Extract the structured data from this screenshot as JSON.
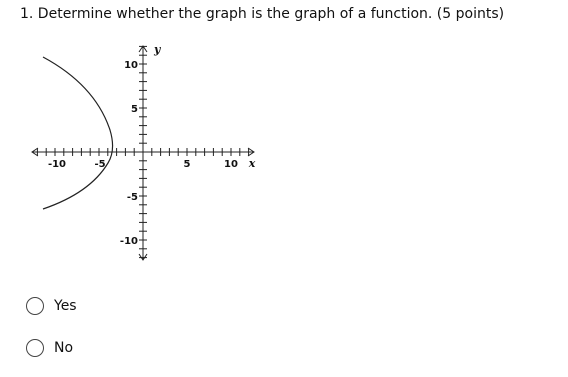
{
  "question": {
    "text": "1. Determine whether the graph is the graph of a function. (5 points)"
  },
  "graph": {
    "x_axis_label": "x",
    "y_axis_label": "y",
    "x_tick_labels": [
      "-10",
      "-5",
      "5",
      "10"
    ],
    "y_tick_labels": [
      "10",
      "5",
      "-5",
      "-10"
    ]
  },
  "options": [
    "Yes",
    "No"
  ]
}
